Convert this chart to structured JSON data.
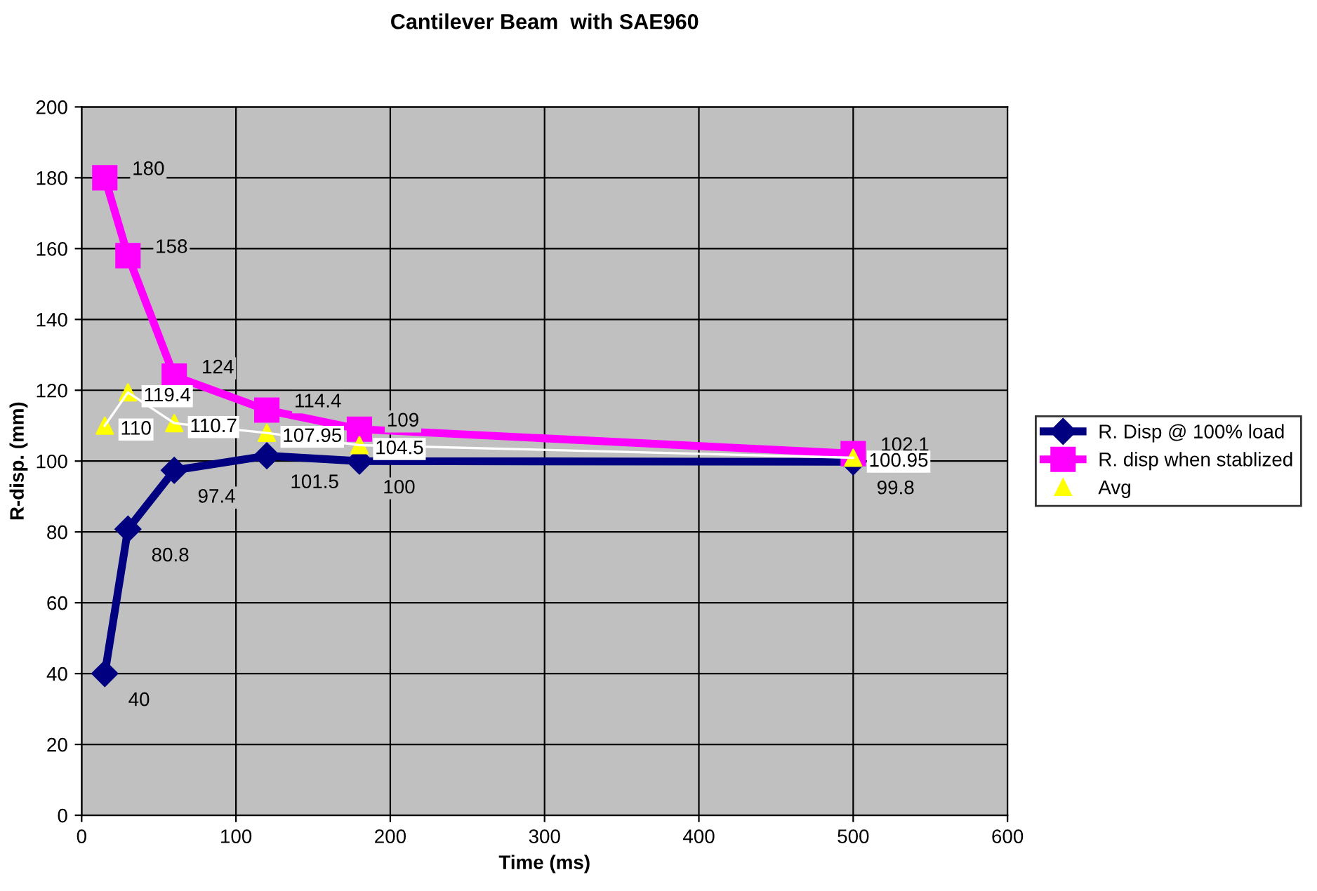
{
  "chart_data": {
    "type": "line",
    "title": "Cantilever Beam  with SAE960",
    "xlabel": "Time (ms)",
    "ylabel": "R-disp. (mm)",
    "x": [
      15,
      30,
      60,
      120,
      180,
      500
    ],
    "series": [
      {
        "name": "R. Disp @ 100% load",
        "color": "#000080",
        "marker": "diamond",
        "values": [
          40,
          80.8,
          97.4,
          101.5,
          100,
          99.8
        ],
        "value_labels": [
          "40",
          "80.8",
          "97.4",
          "101.5",
          "100",
          "99.8"
        ]
      },
      {
        "name": "R. disp when stablized",
        "color": "#ff00ff",
        "marker": "square",
        "values": [
          180,
          158,
          124,
          114.4,
          109,
          102.1
        ],
        "value_labels": [
          "180",
          "158",
          "124",
          "114.4",
          "109",
          "102.1"
        ]
      },
      {
        "type": "line",
        "color": "#ffffff",
        "marker": "none",
        "values": [
          110,
          119.4,
          110.7,
          107.95,
          104.5,
          100.95
        ]
      },
      {
        "type": "scatter",
        "name": "Avg",
        "color": "#ffff00",
        "marker": "triangle",
        "values": [
          110,
          119.4,
          110.7,
          107.95,
          104.5,
          100.95
        ],
        "value_labels": [
          "110",
          "119.4",
          "110.7",
          "107.95",
          "104.5",
          "100.95"
        ]
      }
    ],
    "xlim": [
      0,
      600
    ],
    "xticks": [
      0,
      100,
      200,
      300,
      400,
      500,
      600
    ],
    "ylim": [
      0,
      200
    ],
    "yticks": [
      0,
      20,
      40,
      60,
      80,
      100,
      120,
      140,
      160,
      180,
      200
    ],
    "grid": true,
    "legend": "right"
  }
}
